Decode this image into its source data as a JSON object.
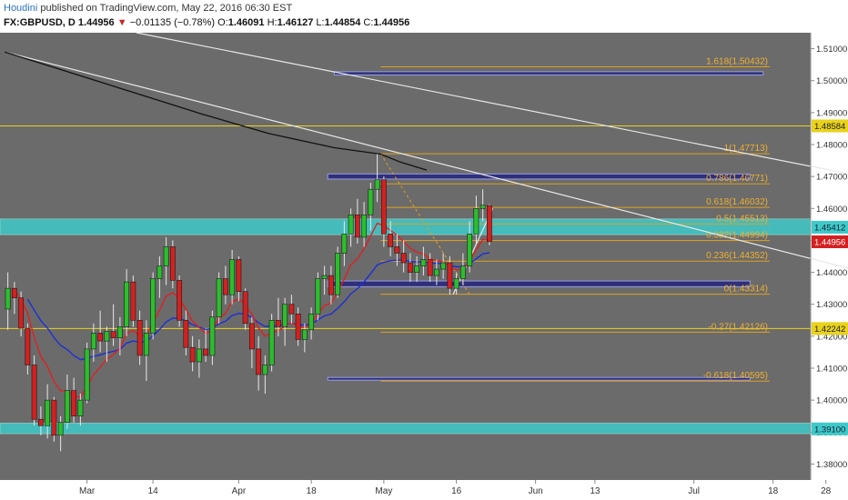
{
  "header": {
    "author": "Houdini",
    "published_text": "published on TradingView.com, May 22, 2016 06:30 EST",
    "symbol": "FX:GBPUSD, D",
    "last": "1.44956",
    "change_arrow": "▼",
    "change": "−0.01135 (−0.78%)",
    "open_label": "O:",
    "open": "1.46091",
    "high_label": "H:",
    "high": "1.46127",
    "low_label": "L:",
    "low": "1.44854",
    "close_label": "C:",
    "close": "1.44956"
  },
  "colors": {
    "background": "#6b6b6b",
    "bull": "#2bbf2b",
    "bear": "#d42020",
    "fib": "#e0a020",
    "level": "#e8d21c",
    "zone": "#2f2f7a",
    "band": "#3fc9c9",
    "ema_fast": "#e02020",
    "ema_slow": "#1c2fd6",
    "sma_long": "#111111",
    "trendline": "#e8e8e8"
  },
  "chart_data": {
    "type": "candlestick",
    "symbol": "FX:GBPUSD",
    "interval": "D",
    "ylim": [
      1.375,
      1.515
    ],
    "y_ticks": [
      "1.51000",
      "1.50000",
      "1.49000",
      "1.48000",
      "1.47000",
      "1.46000",
      "1.45000",
      "1.44000",
      "1.43000",
      "1.42000",
      "1.41000",
      "1.40000",
      "1.39000",
      "1.38000"
    ],
    "x_ticks": [
      {
        "label": "Mar",
        "bar": 12
      },
      {
        "label": "14",
        "bar": 22
      },
      {
        "label": "Apr",
        "bar": 35
      },
      {
        "label": "18",
        "bar": 46
      },
      {
        "label": "May",
        "bar": 57
      },
      {
        "label": "16",
        "bar": 68
      },
      {
        "label": "Jun",
        "bar": 80
      },
      {
        "label": "13",
        "bar": 89
      },
      {
        "label": "Jul",
        "bar": 104
      },
      {
        "label": "18",
        "bar": 116
      },
      {
        "label": "28",
        "bar": 124
      }
    ],
    "candles": [
      [
        1.4285,
        1.44,
        1.422,
        1.435
      ],
      [
        1.435,
        1.437,
        1.427,
        1.432
      ],
      [
        1.432,
        1.434,
        1.42,
        1.4225
      ],
      [
        1.4225,
        1.424,
        1.408,
        1.411
      ],
      [
        1.411,
        1.414,
        1.392,
        1.394
      ],
      [
        1.394,
        1.398,
        1.389,
        1.392
      ],
      [
        1.392,
        1.405,
        1.388,
        1.4
      ],
      [
        1.4,
        1.401,
        1.387,
        1.389
      ],
      [
        1.389,
        1.395,
        1.384,
        1.393
      ],
      [
        1.393,
        1.408,
        1.391,
        1.403
      ],
      [
        1.403,
        1.407,
        1.393,
        1.395
      ],
      [
        1.395,
        1.402,
        1.392,
        1.4
      ],
      [
        1.4,
        1.418,
        1.399,
        1.416
      ],
      [
        1.416,
        1.424,
        1.412,
        1.421
      ],
      [
        1.421,
        1.428,
        1.415,
        1.4185
      ],
      [
        1.4185,
        1.423,
        1.412,
        1.4215
      ],
      [
        1.4215,
        1.43,
        1.417,
        1.4195
      ],
      [
        1.4195,
        1.426,
        1.414,
        1.423
      ],
      [
        1.423,
        1.441,
        1.42,
        1.437
      ],
      [
        1.437,
        1.439,
        1.423,
        1.425
      ],
      [
        1.425,
        1.428,
        1.411,
        1.414
      ],
      [
        1.414,
        1.425,
        1.406,
        1.421
      ],
      [
        1.421,
        1.44,
        1.419,
        1.438
      ],
      [
        1.438,
        1.445,
        1.432,
        1.442
      ],
      [
        1.442,
        1.451,
        1.436,
        1.448
      ],
      [
        1.448,
        1.45,
        1.435,
        1.4375
      ],
      [
        1.4375,
        1.439,
        1.423,
        1.425
      ],
      [
        1.425,
        1.428,
        1.414,
        1.4165
      ],
      [
        1.4165,
        1.42,
        1.409,
        1.412
      ],
      [
        1.412,
        1.419,
        1.407,
        1.416
      ],
      [
        1.416,
        1.422,
        1.412,
        1.414
      ],
      [
        1.414,
        1.428,
        1.411,
        1.426
      ],
      [
        1.426,
        1.44,
        1.424,
        1.438
      ],
      [
        1.438,
        1.442,
        1.43,
        1.433
      ],
      [
        1.433,
        1.447,
        1.43,
        1.444
      ],
      [
        1.444,
        1.445,
        1.431,
        1.434
      ],
      [
        1.434,
        1.435,
        1.422,
        1.424
      ],
      [
        1.424,
        1.426,
        1.41,
        1.416
      ],
      [
        1.416,
        1.42,
        1.403,
        1.408
      ],
      [
        1.408,
        1.414,
        1.402,
        1.411
      ],
      [
        1.411,
        1.427,
        1.409,
        1.425
      ],
      [
        1.425,
        1.432,
        1.42,
        1.423
      ],
      [
        1.423,
        1.432,
        1.417,
        1.43
      ],
      [
        1.43,
        1.433,
        1.424,
        1.427
      ],
      [
        1.427,
        1.429,
        1.417,
        1.419
      ],
      [
        1.419,
        1.424,
        1.415,
        1.422
      ],
      [
        1.422,
        1.429,
        1.419,
        1.427
      ],
      [
        1.427,
        1.44,
        1.425,
        1.438
      ],
      [
        1.438,
        1.442,
        1.433,
        1.439
      ],
      [
        1.439,
        1.442,
        1.43,
        1.433
      ],
      [
        1.433,
        1.448,
        1.432,
        1.446
      ],
      [
        1.446,
        1.456,
        1.442,
        1.452
      ],
      [
        1.452,
        1.46,
        1.448,
        1.458
      ],
      [
        1.458,
        1.463,
        1.449,
        1.451
      ],
      [
        1.451,
        1.462,
        1.448,
        1.458
      ],
      [
        1.458,
        1.468,
        1.453,
        1.466
      ],
      [
        1.466,
        1.477,
        1.462,
        1.469
      ],
      [
        1.469,
        1.47,
        1.448,
        1.452
      ],
      [
        1.452,
        1.456,
        1.445,
        1.448
      ],
      [
        1.448,
        1.452,
        1.442,
        1.446
      ],
      [
        1.446,
        1.45,
        1.44,
        1.443
      ],
      [
        1.443,
        1.446,
        1.437,
        1.44
      ],
      [
        1.44,
        1.445,
        1.437,
        1.442
      ],
      [
        1.442,
        1.448,
        1.439,
        1.444
      ],
      [
        1.444,
        1.446,
        1.437,
        1.439
      ],
      [
        1.439,
        1.444,
        1.436,
        1.441
      ],
      [
        1.441,
        1.446,
        1.438,
        1.443
      ],
      [
        1.443,
        1.445,
        1.433,
        1.435
      ],
      [
        1.435,
        1.44,
        1.4331,
        1.438
      ],
      [
        1.438,
        1.446,
        1.436,
        1.442
      ],
      [
        1.442,
        1.456,
        1.44,
        1.452
      ],
      [
        1.452,
        1.464,
        1.449,
        1.46
      ],
      [
        1.46,
        1.466,
        1.456,
        1.461
      ],
      [
        1.4609,
        1.4613,
        1.4485,
        1.4496
      ]
    ],
    "indicators": [
      {
        "kind": "ema",
        "period": 8,
        "color": "ema_fast"
      },
      {
        "kind": "ema",
        "period": 21,
        "color": "ema_slow"
      },
      {
        "kind": "sma",
        "period": 200,
        "color": "sma_long"
      }
    ],
    "sma_long_path": [
      [
        0,
        1.509
      ],
      [
        10,
        1.5025
      ],
      [
        20,
        1.496
      ],
      [
        30,
        1.4895
      ],
      [
        40,
        1.4835
      ],
      [
        50,
        1.479
      ],
      [
        57,
        1.477
      ],
      [
        60,
        1.4745
      ],
      [
        64,
        1.472
      ]
    ],
    "trendlines": [
      {
        "from": [
          20,
          1.515
        ],
        "to": [
          130,
          1.47
        ]
      },
      {
        "from": [
          0,
          1.509
        ],
        "to": [
          130,
          1.4402
        ]
      },
      {
        "from": [
          68,
          1.4331
        ],
        "to": [
          74,
          1.46
        ]
      }
    ],
    "fib_drawing": {
      "from": [
        57,
        1.47713
      ],
      "to": [
        68,
        1.43314
      ]
    },
    "fib_levels": [
      {
        "ratio": "1.618",
        "price": 1.50432,
        "label": "1.618(1.50432)"
      },
      {
        "ratio": "1",
        "price": 1.47713,
        "label": "1(1.47713)"
      },
      {
        "ratio": "0.786",
        "price": 1.46771,
        "label": "0.786(1.46771)"
      },
      {
        "ratio": "0.618",
        "price": 1.46032,
        "label": "0.618(1.46032)"
      },
      {
        "ratio": "0.5",
        "price": 1.45513,
        "label": "0.5(1.45513)"
      },
      {
        "ratio": "0.382",
        "price": 1.44994,
        "label": "0.382(1.44994)"
      },
      {
        "ratio": "0.236",
        "price": 1.44352,
        "label": "0.236(1.44352)"
      },
      {
        "ratio": "0",
        "price": 1.43314,
        "label": "0(1.43314)"
      },
      {
        "ratio": "-0.27",
        "price": 1.42126,
        "label": "-0.27(1.42126)"
      },
      {
        "ratio": "-0.618",
        "price": 1.40595,
        "label": "-0.618(1.40595)"
      }
    ],
    "fib_x_range": [
      57,
      116
    ],
    "zones": [
      {
        "x": [
          50,
          115
        ],
        "y": [
          1.5018,
          1.5028
        ]
      },
      {
        "x": [
          49,
          113
        ],
        "y": [
          1.4692,
          1.4708
        ]
      },
      {
        "x": [
          49,
          113
        ],
        "y": [
          1.4355,
          1.4373
        ]
      },
      {
        "x": [
          49,
          113
        ],
        "y": [
          1.4063,
          1.4071
        ]
      }
    ],
    "bands": [
      {
        "y": [
          1.4518,
          1.4567
        ]
      },
      {
        "y": [
          1.3895,
          1.3928
        ]
      }
    ],
    "horizontal_levels": [
      {
        "price": 1.48584,
        "label": "1.48584"
      },
      {
        "price": 1.42242,
        "label": "1.42242"
      }
    ],
    "band_labels": [
      {
        "price": 1.45412,
        "label": "1.45412"
      },
      {
        "price": 1.391,
        "label": "1.39100"
      }
    ],
    "last_price_label": {
      "price": 1.44956,
      "label": "1.44956"
    }
  }
}
